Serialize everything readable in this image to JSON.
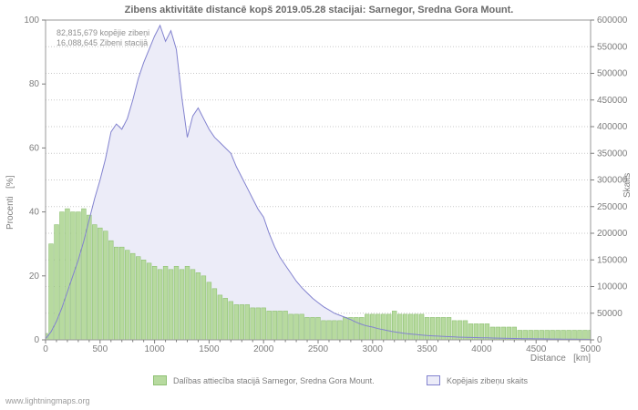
{
  "footer": "www.lightningmaps.org",
  "colors": {
    "bars_fill": "#b7da9f",
    "bars_stroke": "#8fc175",
    "area_fill": "#ececf8",
    "line_stroke": "#8282cf",
    "grid": "#c9c9c9",
    "plot_border": "#9a9a9a",
    "text_grey": "#7d7d7d"
  },
  "chart_data": {
    "type": "area",
    "title": "Zibens aktivitāte distancē kopš 2019.05.28 stacijai: Sarnegor, Sredna Gora Mount.",
    "xlabel": "Distance   [km]",
    "ylabel_left": "Procenti   [%]",
    "ylabel_right": "Skaits",
    "annotations": [
      "82,815,679 kopējie zibeņi",
      "16,088,645 Zibeni stacijā"
    ],
    "xlim": [
      0,
      5000
    ],
    "ylim_left": [
      0,
      100
    ],
    "ylim_right": [
      0,
      600000
    ],
    "x_tick_step": 500,
    "x_minor_tick_step": 100,
    "left_tick_step": 20,
    "right_tick_step": 50000,
    "grid": "horizontal-dotted-at-right-axis-ticks",
    "legend_position": "bottom",
    "x_km": [
      0,
      50,
      100,
      150,
      200,
      250,
      300,
      350,
      400,
      450,
      500,
      550,
      600,
      650,
      700,
      750,
      800,
      850,
      900,
      950,
      1000,
      1050,
      1100,
      1150,
      1200,
      1250,
      1300,
      1350,
      1400,
      1450,
      1500,
      1550,
      1600,
      1650,
      1700,
      1750,
      1800,
      1850,
      1900,
      1950,
      2000,
      2050,
      2100,
      2150,
      2200,
      2250,
      2300,
      2350,
      2400,
      2450,
      2500,
      2550,
      2600,
      2650,
      2700,
      2750,
      2800,
      2850,
      2900,
      2950,
      3000,
      3050,
      3100,
      3150,
      3200,
      3250,
      3300,
      3350,
      3400,
      3450,
      3500,
      3550,
      3600,
      3650,
      3700,
      3750,
      3800,
      3850,
      3900,
      3950,
      4000,
      4050,
      4100,
      4150,
      4200,
      4250,
      4300,
      4350,
      4400,
      4450,
      4500,
      4550,
      4600,
      4650,
      4700,
      4750,
      4800,
      4850,
      4900,
      4950,
      5000
    ],
    "series": [
      {
        "name": "Dalības attiecība stacijā Sarnegor, Sredna Gora Mount.",
        "axis": "left",
        "style": "bars",
        "unit": "%",
        "fill": "#b7da9f",
        "stroke": "#8fc175",
        "values": [
          2,
          30,
          36,
          40,
          41,
          40,
          40,
          41,
          39,
          36,
          35,
          34,
          31,
          29,
          29,
          28,
          27,
          26,
          25,
          24,
          23,
          22,
          23,
          22,
          23,
          22,
          23,
          22,
          21,
          20,
          18,
          16,
          14,
          13,
          12,
          11,
          11,
          11,
          10,
          10,
          10,
          9,
          9,
          9,
          9,
          8,
          8,
          8,
          7,
          7,
          7,
          6,
          6,
          6,
          6,
          7,
          7,
          7,
          7,
          8,
          8,
          8,
          8,
          8,
          9,
          8,
          8,
          8,
          8,
          8,
          7,
          7,
          7,
          7,
          7,
          6,
          6,
          6,
          5,
          5,
          5,
          5,
          4,
          4,
          4,
          4,
          4,
          3,
          3,
          3,
          3,
          3,
          3,
          3,
          3,
          3,
          3,
          3,
          3,
          3,
          3
        ]
      },
      {
        "name": "Kopējais zibeņu skaits",
        "axis": "right",
        "style": "line-area",
        "unit": "count",
        "fill": "#ececf8",
        "stroke": "#8282cf",
        "values": [
          2000,
          15000,
          35000,
          60000,
          90000,
          120000,
          150000,
          185000,
          225000,
          265000,
          300000,
          340000,
          390000,
          405000,
          395000,
          415000,
          450000,
          490000,
          520000,
          545000,
          570000,
          590000,
          560000,
          580000,
          545000,
          455000,
          380000,
          420000,
          435000,
          415000,
          395000,
          380000,
          370000,
          360000,
          350000,
          325000,
          305000,
          285000,
          265000,
          245000,
          230000,
          200000,
          175000,
          155000,
          140000,
          125000,
          110000,
          98000,
          88000,
          78000,
          70000,
          62000,
          56000,
          50000,
          46000,
          42000,
          38000,
          33000,
          29000,
          26000,
          24000,
          21000,
          19000,
          17000,
          15000,
          13500,
          12000,
          11000,
          10000,
          9000,
          8000,
          7500,
          7000,
          6500,
          6000,
          5500,
          5000,
          4800,
          4500,
          4200,
          4000,
          3800,
          3500,
          3200,
          3000,
          2800,
          2600,
          2400,
          2200,
          2000,
          1900,
          1800,
          1700,
          1600,
          1500,
          1400,
          1300,
          1200,
          1100,
          1000,
          900
        ]
      }
    ]
  }
}
